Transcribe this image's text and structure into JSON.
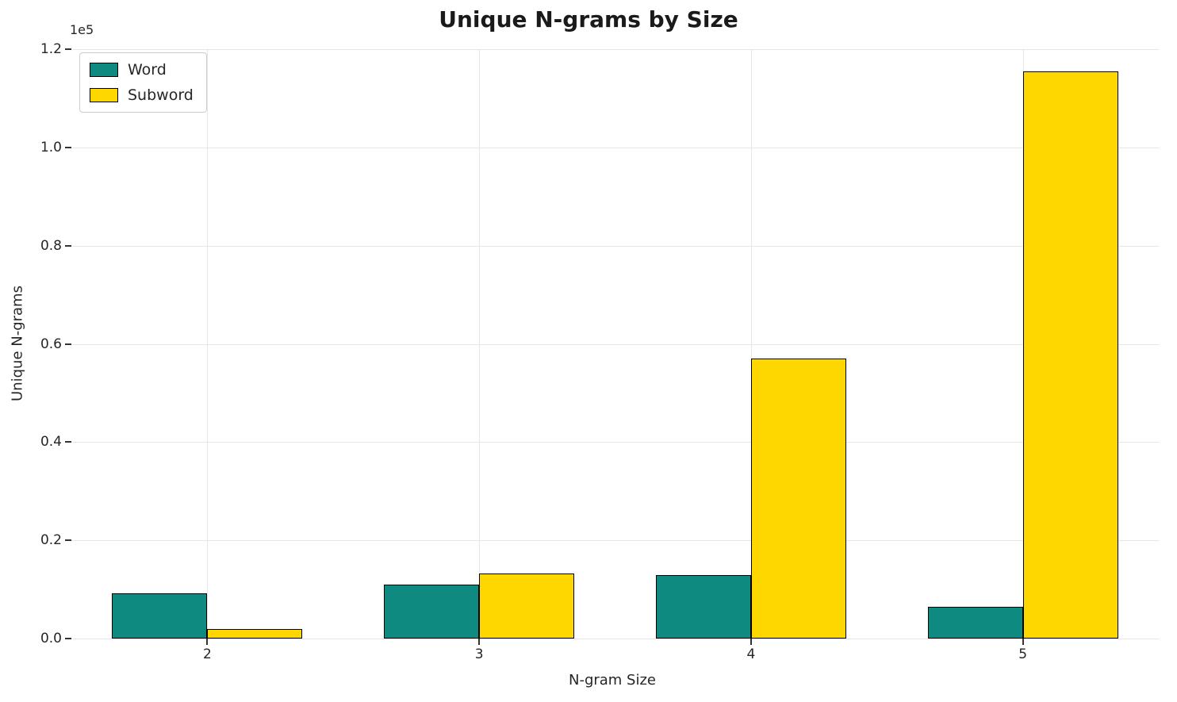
{
  "chart_data": {
    "type": "bar",
    "title": "Unique N-grams by Size",
    "xlabel": "N-gram Size",
    "ylabel": "Unique N-grams",
    "offset_text": "1e5",
    "categories": [
      "2",
      "3",
      "4",
      "5"
    ],
    "series": [
      {
        "name": "Word",
        "color": "#0f8a80",
        "values": [
          9200,
          11000,
          13000,
          6400
        ]
      },
      {
        "name": "Subword",
        "color": "#ffd700",
        "values": [
          1900,
          13200,
          57000,
          115500
        ]
      }
    ],
    "ylim": [
      0,
      120000
    ],
    "ytick_scale": 100000,
    "yticks": [
      0.0,
      0.2,
      0.4,
      0.6,
      0.8,
      1.0,
      1.2
    ],
    "ytick_labels": [
      "0.0",
      "0.2",
      "0.4",
      "0.6",
      "0.8",
      "1.0",
      "1.2"
    ],
    "grid": true,
    "legend_position": "upper left",
    "edge_color": "#000000",
    "background": "#ffffff"
  }
}
